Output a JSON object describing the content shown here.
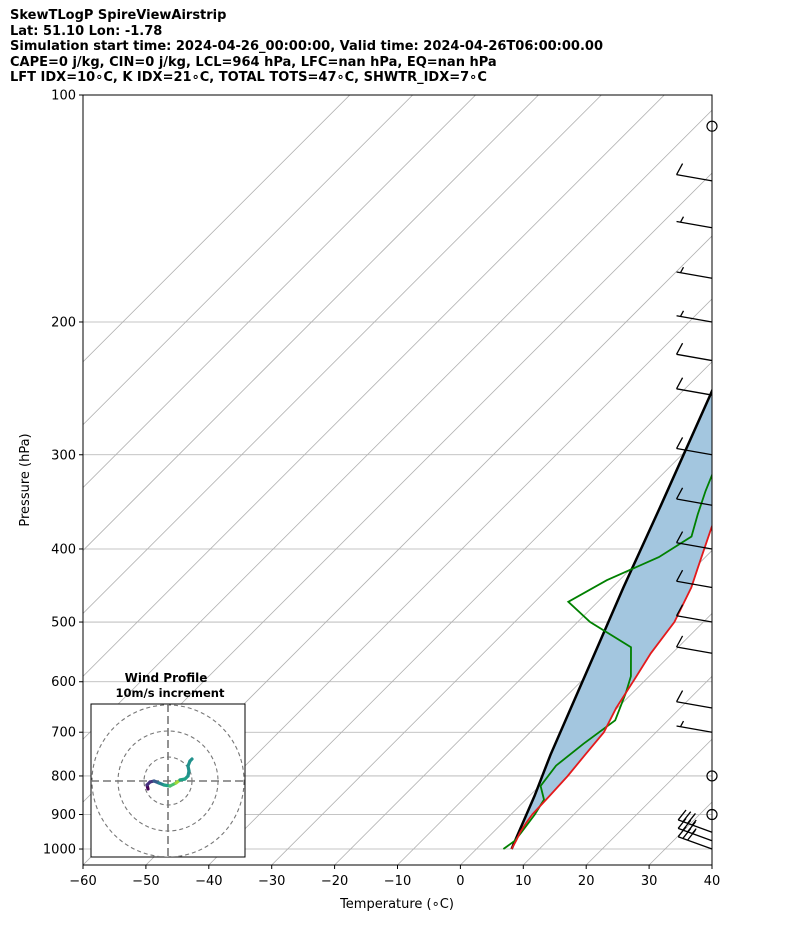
{
  "header": {
    "line1": "SkewTLogP SpireViewAirstrip",
    "line2": "Lat: 51.10   Lon: -1.78",
    "line3": "Simulation start time: 2024-04-26_00:00:00, Valid time: 2024-04-26T06:00:00.00",
    "line4": "CAPE=0 j/kg, CIN=0 j/kg, LCL=964 hPa, LFC=nan hPa, EQ=nan hPa",
    "line5": "LFT IDX=10∘C, K IDX=21∘C, TOTAL TOTS=47∘C, SHWTR_IDX=7∘C"
  },
  "chart_data": {
    "type": "line",
    "xlabel": "Temperature (∘C)",
    "ylabel": "Pressure (hPa)",
    "xlim": [
      -60,
      40
    ],
    "ylim": [
      1050,
      100
    ],
    "yscale": "log",
    "x_ticks": [
      -60,
      -50,
      -40,
      -30,
      -20,
      -10,
      0,
      10,
      20,
      30,
      40
    ],
    "x_tick_labels": [
      "−60",
      "−50",
      "−40",
      "−30",
      "−20",
      "−10",
      "0",
      "10",
      "20",
      "30",
      "40"
    ],
    "y_ticks": [
      100,
      200,
      300,
      400,
      500,
      600,
      700,
      800,
      900,
      1000
    ],
    "y_tick_labels": [
      "100",
      "200",
      "300",
      "400",
      "500",
      "600",
      "700",
      "800",
      "900",
      "1000"
    ],
    "grid": true,
    "colors": {
      "temperature": "#e41a1c",
      "dewpoint": "#008000",
      "parcel": "#000000",
      "fill": "#a3c6df",
      "dry_adiabat": "#ff6666",
      "moist_adiabat": "#4a5ef5",
      "mixing_ratio": "#8a4fd0"
    },
    "series": [
      {
        "key": "temperature",
        "points": [
          [
            5.6,
            1000
          ],
          [
            5.0,
            975
          ],
          [
            4.3,
            950
          ],
          [
            3.8,
            925
          ],
          [
            3.4,
            900
          ],
          [
            3.2,
            850
          ],
          [
            2.9,
            800
          ],
          [
            2.3,
            750
          ],
          [
            1.7,
            700
          ],
          [
            -0.2,
            650
          ],
          [
            -1.7,
            600
          ],
          [
            -3.4,
            550
          ],
          [
            -4.6,
            500
          ],
          [
            -7.4,
            450
          ],
          [
            -9.4,
            425
          ],
          [
            -13.7,
            375
          ],
          [
            -17.6,
            330
          ],
          [
            -18.9,
            310
          ],
          [
            -18.5,
            295
          ],
          [
            -17.9,
            280
          ],
          [
            -17.7,
            265
          ],
          [
            -17.8,
            255
          ],
          [
            -17.4,
            250
          ],
          [
            -17.0,
            233
          ],
          [
            -17.3,
            218
          ],
          [
            -19.4,
            197
          ],
          [
            -23.0,
            175
          ],
          [
            -30.0,
            150
          ],
          [
            -36.5,
            130
          ],
          [
            -42.0,
            117
          ],
          [
            -43.0,
            106
          ],
          [
            -43.5,
            100
          ]
        ]
      },
      {
        "key": "dewpoint",
        "points": [
          [
            4.3,
            1000
          ],
          [
            4.8,
            975
          ],
          [
            4.5,
            950
          ],
          [
            3.8,
            900
          ],
          [
            2.9,
            860
          ],
          [
            0.2,
            825
          ],
          [
            -0.6,
            775
          ],
          [
            0.3,
            725
          ],
          [
            1.6,
            675
          ],
          [
            -1.1,
            620
          ],
          [
            -2.9,
            590
          ],
          [
            -7.5,
            540
          ],
          [
            -18.0,
            500
          ],
          [
            -24.7,
            470
          ],
          [
            -22.0,
            440
          ],
          [
            -17.4,
            410
          ],
          [
            -15.5,
            385
          ],
          [
            -18.0,
            360
          ],
          [
            -20.5,
            335
          ],
          [
            -22.9,
            310
          ],
          [
            -23.2,
            290
          ],
          [
            -24.9,
            270
          ],
          [
            -25.4,
            240
          ],
          [
            -26.2,
            210
          ],
          [
            -27.8,
            198
          ],
          [
            -29.5,
            188
          ],
          [
            -28.0,
            175
          ],
          [
            -25.0,
            160
          ],
          [
            -20.0,
            140
          ],
          [
            -15.0,
            120
          ],
          [
            -11.0,
            100
          ]
        ]
      },
      {
        "key": "parcel",
        "points": [
          [
            5.6,
            1000
          ],
          [
            4.5,
            964
          ],
          [
            0.8,
            850
          ],
          [
            -3.2,
            750
          ],
          [
            -7.4,
            650
          ],
          [
            -12.3,
            550
          ],
          [
            -18.2,
            450
          ],
          [
            -25.3,
            350
          ],
          [
            -35.0,
            250
          ],
          [
            -48.0,
            160
          ],
          [
            -55.0,
            125
          ],
          [
            -60.5,
            100
          ]
        ]
      }
    ],
    "wind_barbs": [
      {
        "pressure": 1000,
        "speed_kt": 30
      },
      {
        "pressure": 975,
        "speed_kt": 35
      },
      {
        "pressure": 950,
        "speed_kt": 35
      },
      {
        "pressure": 900,
        "speed_kt": 0
      },
      {
        "pressure": 800,
        "speed_kt": 0
      },
      {
        "pressure": 700,
        "speed_kt": 5
      },
      {
        "pressure": 650,
        "speed_kt": 10
      },
      {
        "pressure": 550,
        "speed_kt": 10
      },
      {
        "pressure": 500,
        "speed_kt": 10
      },
      {
        "pressure": 450,
        "speed_kt": 10
      },
      {
        "pressure": 400,
        "speed_kt": 10
      },
      {
        "pressure": 350,
        "speed_kt": 10
      },
      {
        "pressure": 300,
        "speed_kt": 10
      },
      {
        "pressure": 250,
        "speed_kt": 10
      },
      {
        "pressure": 225,
        "speed_kt": 10
      },
      {
        "pressure": 200,
        "speed_kt": 5
      },
      {
        "pressure": 175,
        "speed_kt": 5
      },
      {
        "pressure": 150,
        "speed_kt": 5
      },
      {
        "pressure": 130,
        "speed_kt": 10
      },
      {
        "pressure": 110,
        "speed_kt": 0
      }
    ]
  },
  "inset": {
    "title_line1": "Wind Profile",
    "title_line2": "10m/s increment"
  }
}
